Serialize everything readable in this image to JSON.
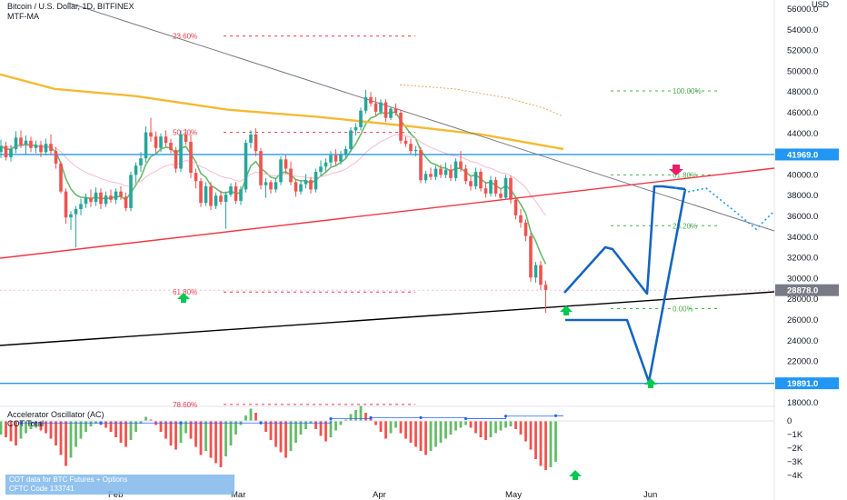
{
  "chart_title": "Bitcoin / U.S. Dollar, 1D, BITFINEX",
  "indicator_label": "MTF-MA",
  "oscillator_title": "Accelerator Oscillator (AC)",
  "cot_title": "COT Total",
  "cot_note": {
    "line1": "COT data for BTC Futures + Options",
    "line2": "CFTC Code 133741"
  },
  "colors": {
    "bull": "#26a69a",
    "bear": "#ef5350",
    "blue_line": "#2196f3",
    "red_line": "#f23645",
    "projection": "#1565c0",
    "fib_red": "#f23645",
    "fib_green": "#4caf50",
    "ma_orange": "#f5b933",
    "ma_green": "#66bb6a"
  },
  "chart_data": {
    "type": "candlestick",
    "title": "Bitcoin / U.S. Dollar, 1D, BITFINEX",
    "ylabel": "USD",
    "ylim": [
      17000,
      57000
    ],
    "price_ticks": [
      "56000.0",
      "54000.0",
      "52000.0",
      "50000.0",
      "48000.0",
      "46000.0",
      "44000.0",
      "42000.0",
      "40000.0",
      "38000.0",
      "36000.0",
      "34000.0",
      "32000.0",
      "30000.0",
      "28000.0",
      "26000.0",
      "24000.0",
      "22000.0",
      "18000.0"
    ],
    "price_tick_values": [
      56000,
      54000,
      52000,
      50000,
      48000,
      46000,
      44000,
      42000,
      40000,
      38000,
      36000,
      34000,
      32000,
      30000,
      28000,
      26000,
      24000,
      22000,
      18000
    ],
    "x_ticks": [
      "Feb",
      "Mar",
      "Apr",
      "May",
      "Jun"
    ],
    "highlight_prices": [
      {
        "label": "41969.0",
        "value": 41969,
        "color": "#2196f3"
      },
      {
        "label": "28878.0",
        "value": 28878,
        "color": "#787b86"
      },
      {
        "label": "19891.0",
        "value": 19891,
        "color": "#2196f3"
      }
    ],
    "fib_levels": [
      {
        "label": "23.60%",
        "value": 53400,
        "color": "red"
      },
      {
        "label": "50.20%",
        "value": 44100,
        "color": "red"
      },
      {
        "label": "61.80%",
        "value": 28700,
        "color": "red"
      },
      {
        "label": "78.60%",
        "value": 17850,
        "color": "red"
      },
      {
        "label": "100.00%",
        "value": 48100,
        "color": "green"
      },
      {
        "label": "61.80%",
        "value": 40000,
        "color": "green"
      },
      {
        "label": "23.20%",
        "value": 35100,
        "color": "green"
      },
      {
        "label": "0.00%",
        "value": 27100,
        "color": "green"
      }
    ],
    "candles": [
      {
        "o": 42200,
        "h": 43400,
        "l": 41600,
        "c": 42800
      },
      {
        "o": 42800,
        "h": 43200,
        "l": 41400,
        "c": 41700
      },
      {
        "o": 41700,
        "h": 42900,
        "l": 41300,
        "c": 42500
      },
      {
        "o": 42500,
        "h": 44200,
        "l": 42100,
        "c": 43600
      },
      {
        "o": 43600,
        "h": 44300,
        "l": 42600,
        "c": 42900
      },
      {
        "o": 42900,
        "h": 43800,
        "l": 42000,
        "c": 43300
      },
      {
        "o": 43300,
        "h": 43700,
        "l": 42200,
        "c": 42600
      },
      {
        "o": 42600,
        "h": 43300,
        "l": 42100,
        "c": 42900
      },
      {
        "o": 42900,
        "h": 43300,
        "l": 41700,
        "c": 42200
      },
      {
        "o": 42200,
        "h": 43500,
        "l": 41900,
        "c": 43000
      },
      {
        "o": 43000,
        "h": 43900,
        "l": 41900,
        "c": 42300
      },
      {
        "o": 42300,
        "h": 42700,
        "l": 40600,
        "c": 41100
      },
      {
        "o": 41100,
        "h": 41300,
        "l": 38200,
        "c": 38400
      },
      {
        "o": 38400,
        "h": 38700,
        "l": 35300,
        "c": 35900
      },
      {
        "o": 35900,
        "h": 36500,
        "l": 34700,
        "c": 36200
      },
      {
        "o": 36200,
        "h": 37000,
        "l": 33000,
        "c": 36700
      },
      {
        "o": 36700,
        "h": 37700,
        "l": 36100,
        "c": 37200
      },
      {
        "o": 37200,
        "h": 38200,
        "l": 36800,
        "c": 37800
      },
      {
        "o": 37800,
        "h": 38600,
        "l": 36900,
        "c": 37400
      },
      {
        "o": 37400,
        "h": 38800,
        "l": 37000,
        "c": 38300
      },
      {
        "o": 38300,
        "h": 38700,
        "l": 36700,
        "c": 37200
      },
      {
        "o": 37200,
        "h": 38400,
        "l": 36900,
        "c": 38000
      },
      {
        "o": 38000,
        "h": 38600,
        "l": 37300,
        "c": 37600
      },
      {
        "o": 37600,
        "h": 38700,
        "l": 37200,
        "c": 38400
      },
      {
        "o": 38400,
        "h": 38900,
        "l": 37600,
        "c": 37900
      },
      {
        "o": 37900,
        "h": 38300,
        "l": 36500,
        "c": 36800
      },
      {
        "o": 36800,
        "h": 40300,
        "l": 36500,
        "c": 40000
      },
      {
        "o": 40000,
        "h": 41200,
        "l": 39200,
        "c": 40900
      },
      {
        "o": 40900,
        "h": 42200,
        "l": 40300,
        "c": 41600
      },
      {
        "o": 41600,
        "h": 44700,
        "l": 41200,
        "c": 44100
      },
      {
        "o": 44100,
        "h": 45500,
        "l": 43200,
        "c": 43700
      },
      {
        "o": 43700,
        "h": 44200,
        "l": 42100,
        "c": 42600
      },
      {
        "o": 42600,
        "h": 44000,
        "l": 42200,
        "c": 43700
      },
      {
        "o": 43700,
        "h": 44300,
        "l": 42700,
        "c": 43100
      },
      {
        "o": 43100,
        "h": 43500,
        "l": 42100,
        "c": 42400
      },
      {
        "o": 42400,
        "h": 42700,
        "l": 40200,
        "c": 40600
      },
      {
        "o": 40600,
        "h": 44300,
        "l": 40300,
        "c": 43900
      },
      {
        "o": 43900,
        "h": 44400,
        "l": 42900,
        "c": 43200
      },
      {
        "o": 43200,
        "h": 43900,
        "l": 39700,
        "c": 40200
      },
      {
        "o": 40200,
        "h": 40600,
        "l": 38700,
        "c": 39400
      },
      {
        "o": 39400,
        "h": 39700,
        "l": 36900,
        "c": 37300
      },
      {
        "o": 37300,
        "h": 39300,
        "l": 37000,
        "c": 38900
      },
      {
        "o": 38900,
        "h": 39300,
        "l": 36600,
        "c": 37000
      },
      {
        "o": 37000,
        "h": 38300,
        "l": 36700,
        "c": 38000
      },
      {
        "o": 38000,
        "h": 38500,
        "l": 37100,
        "c": 37400
      },
      {
        "o": 37400,
        "h": 38400,
        "l": 34800,
        "c": 38100
      },
      {
        "o": 38100,
        "h": 39200,
        "l": 37900,
        "c": 38900
      },
      {
        "o": 38900,
        "h": 39300,
        "l": 37200,
        "c": 37500
      },
      {
        "o": 37500,
        "h": 38900,
        "l": 37100,
        "c": 38600
      },
      {
        "o": 38600,
        "h": 43400,
        "l": 38300,
        "c": 43100
      },
      {
        "o": 43100,
        "h": 44300,
        "l": 42600,
        "c": 43900
      },
      {
        "o": 43900,
        "h": 44500,
        "l": 41800,
        "c": 42300
      },
      {
        "o": 42300,
        "h": 42600,
        "l": 38600,
        "c": 39000
      },
      {
        "o": 39000,
        "h": 39700,
        "l": 37800,
        "c": 39300
      },
      {
        "o": 39300,
        "h": 39500,
        "l": 38200,
        "c": 38600
      },
      {
        "o": 38600,
        "h": 39700,
        "l": 38300,
        "c": 39300
      },
      {
        "o": 39300,
        "h": 41800,
        "l": 39000,
        "c": 41500
      },
      {
        "o": 41500,
        "h": 41900,
        "l": 40100,
        "c": 40600
      },
      {
        "o": 40600,
        "h": 41300,
        "l": 39000,
        "c": 39300
      },
      {
        "o": 39300,
        "h": 39600,
        "l": 37900,
        "c": 38400
      },
      {
        "o": 38400,
        "h": 39500,
        "l": 38100,
        "c": 39100
      },
      {
        "o": 39100,
        "h": 40100,
        "l": 38700,
        "c": 39500
      },
      {
        "o": 39500,
        "h": 39800,
        "l": 38200,
        "c": 38600
      },
      {
        "o": 38600,
        "h": 40600,
        "l": 38300,
        "c": 40300
      },
      {
        "o": 40300,
        "h": 41400,
        "l": 39900,
        "c": 40800
      },
      {
        "o": 40800,
        "h": 41600,
        "l": 40300,
        "c": 41200
      },
      {
        "o": 41200,
        "h": 42300,
        "l": 40800,
        "c": 41900
      },
      {
        "o": 41900,
        "h": 42500,
        "l": 40900,
        "c": 41300
      },
      {
        "o": 41300,
        "h": 42300,
        "l": 41000,
        "c": 42000
      },
      {
        "o": 42000,
        "h": 42800,
        "l": 41600,
        "c": 42500
      },
      {
        "o": 42500,
        "h": 44600,
        "l": 42200,
        "c": 44300
      },
      {
        "o": 44300,
        "h": 45000,
        "l": 43800,
        "c": 44600
      },
      {
        "o": 44600,
        "h": 46500,
        "l": 44300,
        "c": 46200
      },
      {
        "o": 46200,
        "h": 48200,
        "l": 45900,
        "c": 47500
      },
      {
        "o": 47500,
        "h": 48000,
        "l": 46600,
        "c": 46900
      },
      {
        "o": 46900,
        "h": 47500,
        "l": 45700,
        "c": 46100
      },
      {
        "o": 46100,
        "h": 47300,
        "l": 45800,
        "c": 47000
      },
      {
        "o": 47000,
        "h": 47300,
        "l": 45100,
        "c": 45500
      },
      {
        "o": 45500,
        "h": 46600,
        "l": 45300,
        "c": 46400
      },
      {
        "o": 46400,
        "h": 46900,
        "l": 45700,
        "c": 46000
      },
      {
        "o": 46000,
        "h": 46300,
        "l": 43000,
        "c": 43300
      },
      {
        "o": 43300,
        "h": 43700,
        "l": 42700,
        "c": 43000
      },
      {
        "o": 43000,
        "h": 43500,
        "l": 42000,
        "c": 42300
      },
      {
        "o": 42300,
        "h": 42800,
        "l": 41800,
        "c": 42400
      },
      {
        "o": 42400,
        "h": 42700,
        "l": 39200,
        "c": 39500
      },
      {
        "o": 39500,
        "h": 40400,
        "l": 39200,
        "c": 40100
      },
      {
        "o": 40100,
        "h": 40700,
        "l": 39500,
        "c": 39800
      },
      {
        "o": 39800,
        "h": 40900,
        "l": 39500,
        "c": 40600
      },
      {
        "o": 40600,
        "h": 41000,
        "l": 39700,
        "c": 40000
      },
      {
        "o": 40000,
        "h": 41200,
        "l": 39700,
        "c": 40500
      },
      {
        "o": 40500,
        "h": 41000,
        "l": 39400,
        "c": 39700
      },
      {
        "o": 39700,
        "h": 41600,
        "l": 39400,
        "c": 41300
      },
      {
        "o": 41300,
        "h": 42300,
        "l": 40300,
        "c": 40600
      },
      {
        "o": 40600,
        "h": 41000,
        "l": 39100,
        "c": 39400
      },
      {
        "o": 39400,
        "h": 39800,
        "l": 38500,
        "c": 38900
      },
      {
        "o": 38900,
        "h": 40700,
        "l": 38600,
        "c": 40300
      },
      {
        "o": 40300,
        "h": 40600,
        "l": 38400,
        "c": 38700
      },
      {
        "o": 38700,
        "h": 39300,
        "l": 37800,
        "c": 38200
      },
      {
        "o": 38200,
        "h": 39900,
        "l": 37900,
        "c": 39500
      },
      {
        "o": 39500,
        "h": 39800,
        "l": 37900,
        "c": 38200
      },
      {
        "o": 38200,
        "h": 38600,
        "l": 37500,
        "c": 37800
      },
      {
        "o": 37800,
        "h": 40000,
        "l": 37600,
        "c": 39700
      },
      {
        "o": 39700,
        "h": 39900,
        "l": 37200,
        "c": 37600
      },
      {
        "o": 37600,
        "h": 37900,
        "l": 35700,
        "c": 36100
      },
      {
        "o": 36100,
        "h": 36700,
        "l": 34900,
        "c": 35400
      },
      {
        "o": 35400,
        "h": 35700,
        "l": 33600,
        "c": 34100
      },
      {
        "o": 34100,
        "h": 34400,
        "l": 29700,
        "c": 30100
      },
      {
        "o": 30100,
        "h": 31600,
        "l": 29600,
        "c": 31300
      },
      {
        "o": 31300,
        "h": 31700,
        "l": 28900,
        "c": 29400
      },
      {
        "o": 29400,
        "h": 29800,
        "l": 26700,
        "c": 28900
      }
    ],
    "oscillator_ticks": [
      "0",
      "−1K",
      "−2K",
      "−3K",
      "−4K"
    ],
    "oscillator_tick_values": [
      0,
      -1000,
      -2000,
      -3000,
      -4000
    ],
    "oscillator_ylim": [
      -4600,
      700
    ],
    "oscillator": [
      -1000,
      -1200,
      -1500,
      -1800,
      -1300,
      -900,
      -600,
      -500,
      -700,
      -900,
      -1300,
      -1800,
      -2500,
      -3300,
      -2700,
      -1900,
      -1300,
      -800,
      -400,
      -200,
      -300,
      -500,
      -800,
      -1200,
      -1600,
      -1900,
      -1400,
      -800,
      -200,
      300,
      100,
      -300,
      -800,
      -1300,
      -1800,
      -2100,
      -1600,
      -900,
      -1300,
      -1900,
      -2500,
      -2200,
      -2700,
      -3100,
      -3400,
      -2600,
      -1800,
      -1000,
      -300,
      400,
      900,
      600,
      -200,
      -800,
      -1400,
      -1900,
      -2300,
      -2700,
      -2200,
      -1600,
      -1000,
      -600,
      -200,
      -600,
      -1100,
      -1500,
      -1200,
      -700,
      -300,
      100,
      500,
      800,
      1100,
      600,
      200,
      -300,
      -800,
      -1300,
      -900,
      -500,
      -900,
      -1300,
      -1600,
      -1900,
      -2200,
      -2500,
      -2200,
      -1900,
      -1600,
      -1300,
      -1000,
      -700,
      -500,
      -300,
      -500,
      -900,
      -1200,
      -1400,
      -1200,
      -900,
      -700,
      -500,
      -400,
      -600,
      -1000,
      -1500,
      -2100,
      -2800,
      -3300,
      -3600,
      -3400,
      -3000
    ],
    "cot_steps": [
      {
        "x": 2,
        "v": -150
      },
      {
        "x": 18,
        "v": -150
      },
      {
        "x": 34,
        "v": -40
      },
      {
        "x": 50,
        "v": -40
      },
      {
        "x": 66,
        "v": 120
      },
      {
        "x": 82,
        "v": 210
      },
      {
        "x": 98,
        "v": 210
      },
      {
        "x": 114,
        "v": 360
      },
      {
        "x": 130,
        "v": 360
      },
      {
        "x": 146,
        "v": 360
      }
    ],
    "oscillator_points": [
      {
        "i": 4,
        "v": -150
      },
      {
        "i": 20,
        "v": -150
      },
      {
        "i": 36,
        "v": -150
      },
      {
        "i": 52,
        "v": -150
      },
      {
        "i": 66,
        "v": 160
      },
      {
        "i": 74,
        "v": 240
      },
      {
        "i": 84,
        "v": 240
      },
      {
        "i": 93,
        "v": 170
      },
      {
        "i": 101,
        "v": 350
      },
      {
        "i": 111,
        "v": 380
      }
    ]
  }
}
